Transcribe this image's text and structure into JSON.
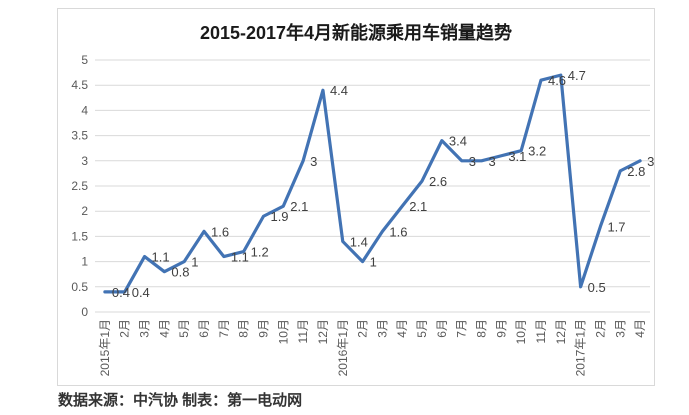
{
  "page": {
    "title": "2015-2017年4月新能源乘用车销量趋势",
    "source_note": "数据来源：中汽协 制表：第一电动网"
  },
  "colors": {
    "line": "#4273b4",
    "gridline": "#d9d9d9",
    "tick_label": "#595959",
    "data_label": "#3f3f3f",
    "card_border": "#d9d9d9"
  },
  "chart_data": {
    "type": "line",
    "title": "2015-2017年4月新能源乘用车销量趋势",
    "categories": [
      "2015年1月",
      "2月",
      "3月",
      "4月",
      "5月",
      "6月",
      "7月",
      "8月",
      "9月",
      "10月",
      "11月",
      "12月",
      "2016年1月",
      "2月",
      "3月",
      "4月",
      "5月",
      "6月",
      "7月",
      "8月",
      "9月",
      "10月",
      "11月",
      "12月",
      "2017年1月",
      "2月",
      "3月",
      "4月"
    ],
    "values": [
      0.4,
      0.4,
      1.1,
      0.8,
      1,
      1.6,
      1.1,
      1.2,
      1.9,
      2.1,
      3,
      4.4,
      1.4,
      1,
      1.6,
      2.1,
      2.6,
      3.4,
      3,
      3,
      3.1,
      3.2,
      4.6,
      4.7,
      0.5,
      1.7,
      2.8,
      3
    ],
    "point_labels": [
      "0.4",
      "0.4",
      "1.1",
      "0.8",
      "1",
      "1.6",
      "1.1",
      "1.2",
      "1.9",
      "2.1",
      "3",
      "4.4",
      "1.4",
      "1",
      "1.6",
      "2.1",
      "2.6",
      "3.4",
      "3",
      "3",
      "3.1",
      "3.2",
      "4.6",
      "4.7",
      "0.5",
      "1.7",
      "2.8",
      "3"
    ],
    "ytick_labels": [
      "0",
      "0.5",
      "1",
      "1.5",
      "2",
      "2.5",
      "3",
      "3.5",
      "4",
      "4.5",
      "5"
    ],
    "ylim": [
      0,
      5
    ],
    "xlabel": "",
    "ylabel": "",
    "grid": "horizontal",
    "legend": "none",
    "x_tick_rotation": -90,
    "data_labels_shown": true,
    "markers": "none"
  }
}
